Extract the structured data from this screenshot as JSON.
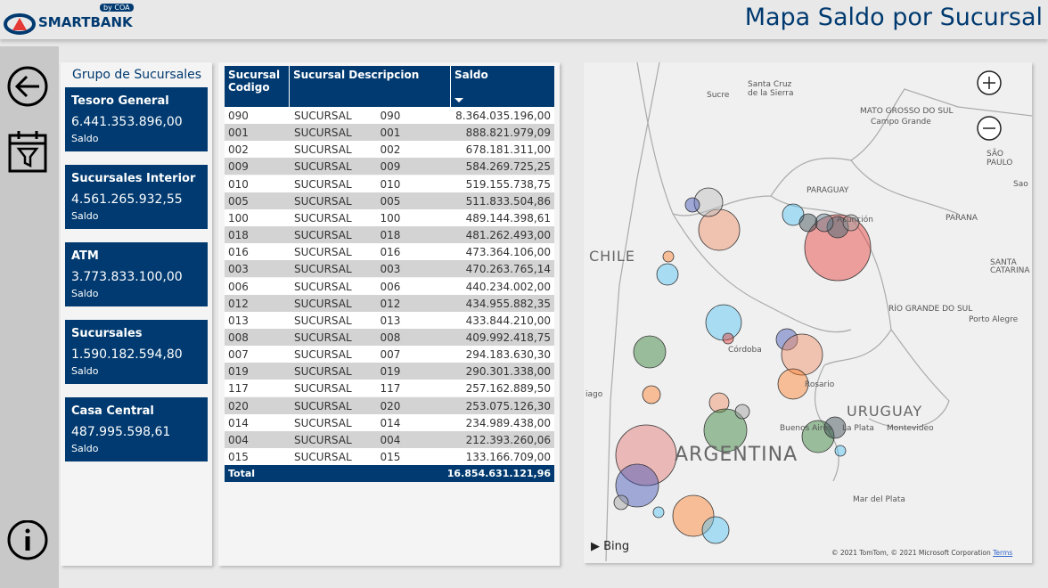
{
  "header": {
    "logo": "SMARTBANK",
    "logo_by": "by COA",
    "title": "Mapa Saldo por Sucursal"
  },
  "group_panel": {
    "title": "Grupo de Sucursales",
    "cards": [
      {
        "name": "Tesoro General",
        "value": "6.441.353.896,00",
        "label": "Saldo"
      },
      {
        "name": "Sucursales Interior",
        "value": "4.561.265.932,55",
        "label": "Saldo"
      },
      {
        "name": "ATM",
        "value": "3.773.833.100,00",
        "label": "Saldo"
      },
      {
        "name": "Sucursales",
        "value": "1.590.182.594,80",
        "label": "Saldo"
      },
      {
        "name": "Casa Central",
        "value": "487.995.598,61",
        "label": "Saldo"
      }
    ]
  },
  "table": {
    "columns": [
      "Sucursal Codigo",
      "Sucursal Descripcion",
      "Saldo"
    ],
    "rows": [
      [
        "090",
        "SUCURSAL 090",
        "8.364.035.196,00"
      ],
      [
        "001",
        "SUCURSAL 001",
        "888.821.979,09"
      ],
      [
        "002",
        "SUCURSAL 002",
        "678.181.311,00"
      ],
      [
        "009",
        "SUCURSAL 009",
        "584.269.725,25"
      ],
      [
        "010",
        "SUCURSAL 010",
        "519.155.738,75"
      ],
      [
        "005",
        "SUCURSAL 005",
        "511.833.504,86"
      ],
      [
        "100",
        "SUCURSAL 100",
        "489.144.398,61"
      ],
      [
        "018",
        "SUCURSAL 018",
        "481.262.493,00"
      ],
      [
        "016",
        "SUCURSAL 016",
        "473.364.106,00"
      ],
      [
        "003",
        "SUCURSAL 003",
        "470.263.765,14"
      ],
      [
        "006",
        "SUCURSAL 006",
        "440.234.002,00"
      ],
      [
        "012",
        "SUCURSAL 012",
        "434.955.882,35"
      ],
      [
        "013",
        "SUCURSAL 013",
        "433.844.210,00"
      ],
      [
        "008",
        "SUCURSAL 008",
        "409.992.418,75"
      ],
      [
        "007",
        "SUCURSAL 007",
        "294.183.630,30"
      ],
      [
        "019",
        "SUCURSAL 019",
        "290.301.338,00"
      ],
      [
        "117",
        "SUCURSAL 117",
        "257.162.889,50"
      ],
      [
        "020",
        "SUCURSAL 020",
        "253.075.126,30"
      ],
      [
        "014",
        "SUCURSAL 014",
        "234.989.438,00"
      ],
      [
        "004",
        "SUCURSAL 004",
        "212.393.260,06"
      ],
      [
        "015",
        "SUCURSAL 015",
        "133.166.709,00"
      ]
    ],
    "total": [
      "Total",
      "16.854.631.121,96"
    ]
  },
  "map": {
    "labels": [
      "Santa Cruz",
      "de la Sierra",
      "Sucre",
      "MATO GROSSO DO SUL",
      "Campo Grande",
      "SÃO PAULO",
      "Sao",
      "PARAGUAY",
      "Asunción",
      "PARANA",
      "SANTA",
      "CATARINA",
      "CHILE",
      "RÍO GRANDE DO SUL",
      "Porto Alegre",
      "Córdoba",
      "Rosario",
      "URUGUAY",
      "Buenos Aires",
      "La Plata",
      "Montevideo",
      "ARGENTINA",
      "Mar del Plata",
      "iago"
    ],
    "attribution": "© 2021 TomTom, © 2021 Microsoft Corporation",
    "terms": "Terms",
    "provider": "Bing"
  }
}
